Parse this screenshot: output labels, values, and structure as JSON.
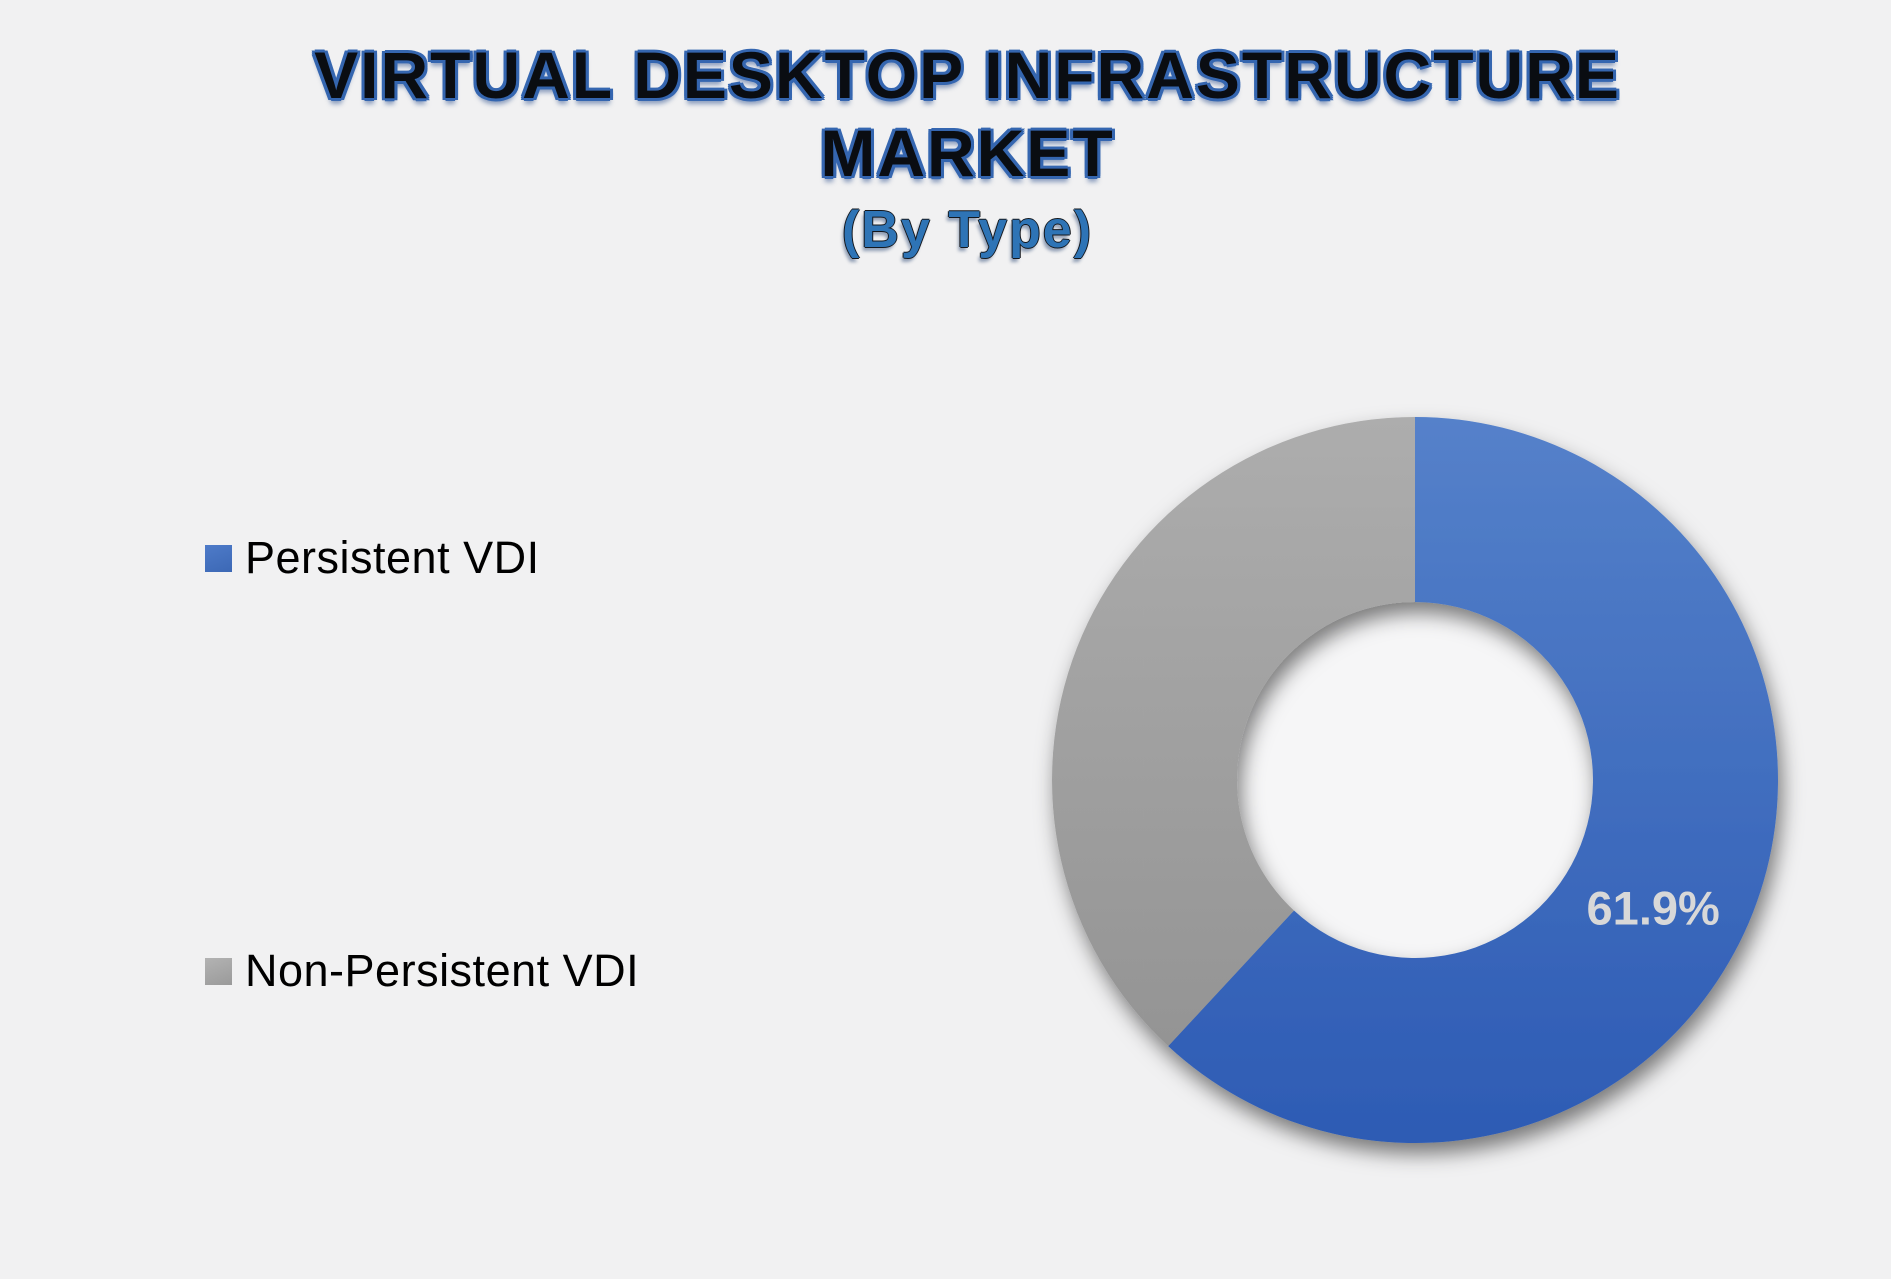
{
  "page": {
    "background": "#F1F1F2"
  },
  "title": {
    "line1": "VIRTUAL DESKTOP INFRASTRUCTURE",
    "line2": "MARKET",
    "subtitle": "(By Type)",
    "text_color": "#0A0D12",
    "outline_color": "#3566B0",
    "subtitle_color": "#2E74B6"
  },
  "legend": {
    "position": "left",
    "items": [
      {
        "label": "Persistent VDI",
        "swatch_colors": [
          "#4E7BC9",
          "#3C68B5"
        ]
      },
      {
        "label": "Non-Persistent VDI",
        "swatch_colors": [
          "#B3B3B3",
          "#9A9A9A"
        ]
      }
    ]
  },
  "chart_data": {
    "type": "pie",
    "subtype": "doughnut",
    "title": "VIRTUAL DESKTOP INFRASTRUCTURE MARKET",
    "subtitle": "(By Type)",
    "categories": [
      "Persistent VDI",
      "Non-Persistent VDI"
    ],
    "values": [
      61.9,
      38.1
    ],
    "unit": "percent",
    "data_labels": [
      "61.9%",
      ""
    ],
    "data_label_color": "#D8D8D8",
    "slice_gradients": [
      [
        "#5581CA",
        "#2D5BB4"
      ],
      [
        "#ADADAD",
        "#949494"
      ]
    ],
    "start_angle_deg": 0,
    "direction": "clockwise",
    "hole_ratio": 0.49,
    "hole_color": "#F6F6F7",
    "legend_position": "left",
    "grid": false
  }
}
